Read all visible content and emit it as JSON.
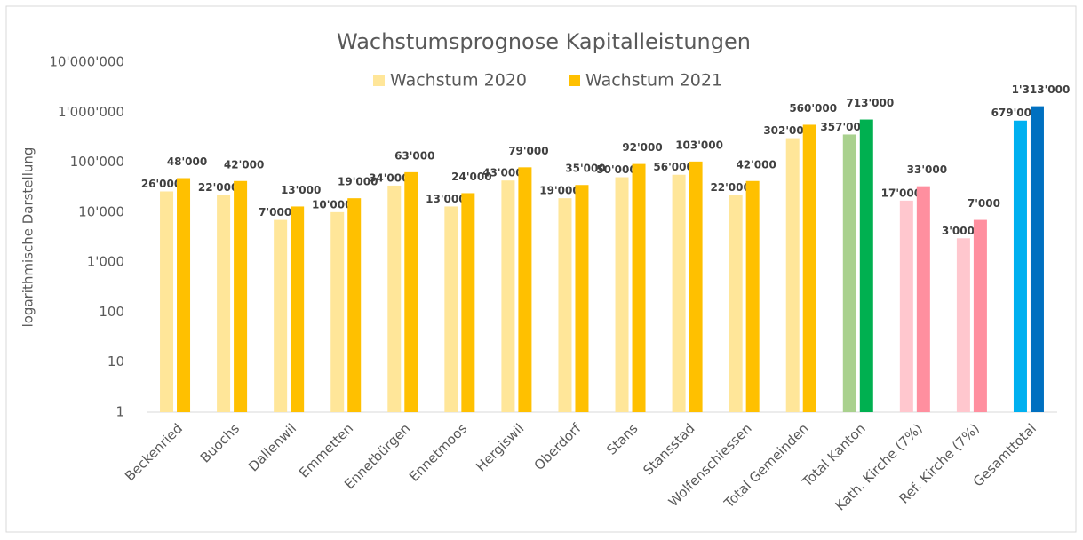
{
  "chart_data": {
    "type": "bar",
    "title": "Wachstumsprognose Kapitalleistungen",
    "y_label": "logarithmische Darstellung",
    "log_scale": true,
    "grid": false,
    "legend": "top",
    "categories": [
      "Beckenried",
      "Buochs",
      "Dallenwil",
      "Emmetten",
      "Ennetbürgen",
      "Ennetmoos",
      "Hergiswil",
      "Oberdorf",
      "Stans",
      "Stansstad",
      "Wolfenschiessen",
      "Total Gemeinden",
      "Total Kanton",
      "Kath. Kirche (7%)",
      "Ref. Kirche (7%)",
      "Gesamttotal"
    ],
    "series": [
      {
        "name": "Wachstum 2020",
        "color": "#FFE699",
        "colors": [
          "#FFE699",
          "#FFE699",
          "#FFE699",
          "#FFE699",
          "#FFE699",
          "#FFE699",
          "#FFE699",
          "#FFE699",
          "#FFE699",
          "#FFE699",
          "#FFE699",
          "#FFE699",
          "#A9D18E",
          "#FFC7CE",
          "#FFC7CE",
          "#00B0F0"
        ],
        "values": [
          26000,
          22000,
          7000,
          10000,
          34000,
          13000,
          43000,
          19000,
          50000,
          56000,
          22000,
          302000,
          357000,
          17000,
          3000,
          679000
        ],
        "value_labels": [
          "26'000",
          "22'000",
          "7'000",
          "10'000",
          "34'000",
          "13'000",
          "43'000",
          "19'000",
          "50'000",
          "56'000",
          "22'000",
          "302'000",
          "357'000",
          "17'000",
          "3'000",
          "679'000"
        ]
      },
      {
        "name": "Wachstum 2021",
        "color": "#FFC000",
        "colors": [
          "#FFC000",
          "#FFC000",
          "#FFC000",
          "#FFC000",
          "#FFC000",
          "#FFC000",
          "#FFC000",
          "#FFC000",
          "#FFC000",
          "#FFC000",
          "#FFC000",
          "#FFC000",
          "#00B050",
          "#FF8F9F",
          "#FF8F9F",
          "#0070C0"
        ],
        "values": [
          48000,
          42000,
          13000,
          19000,
          63000,
          24000,
          79000,
          35000,
          92000,
          103000,
          42000,
          560000,
          713000,
          33000,
          7000,
          1313000
        ],
        "value_labels": [
          "48'000",
          "42'000",
          "13'000",
          "19'000",
          "63'000",
          "24'000",
          "79'000",
          "35'000",
          "92'000",
          "103'000",
          "42'000",
          "560'000",
          "713'000",
          "33'000",
          "7'000",
          "1'313'000"
        ]
      }
    ],
    "ylim": [
      1,
      10000000
    ],
    "yticks": [
      1,
      10,
      100,
      {
        "value": 1000,
        "label": "1'000"
      },
      {
        "value": 10000,
        "label": "10'000"
      },
      {
        "value": 100000,
        "label": "100'000"
      },
      {
        "value": 1000000,
        "label": "1'000'000"
      },
      {
        "value": 10000000,
        "label": "10'000'000"
      }
    ]
  }
}
